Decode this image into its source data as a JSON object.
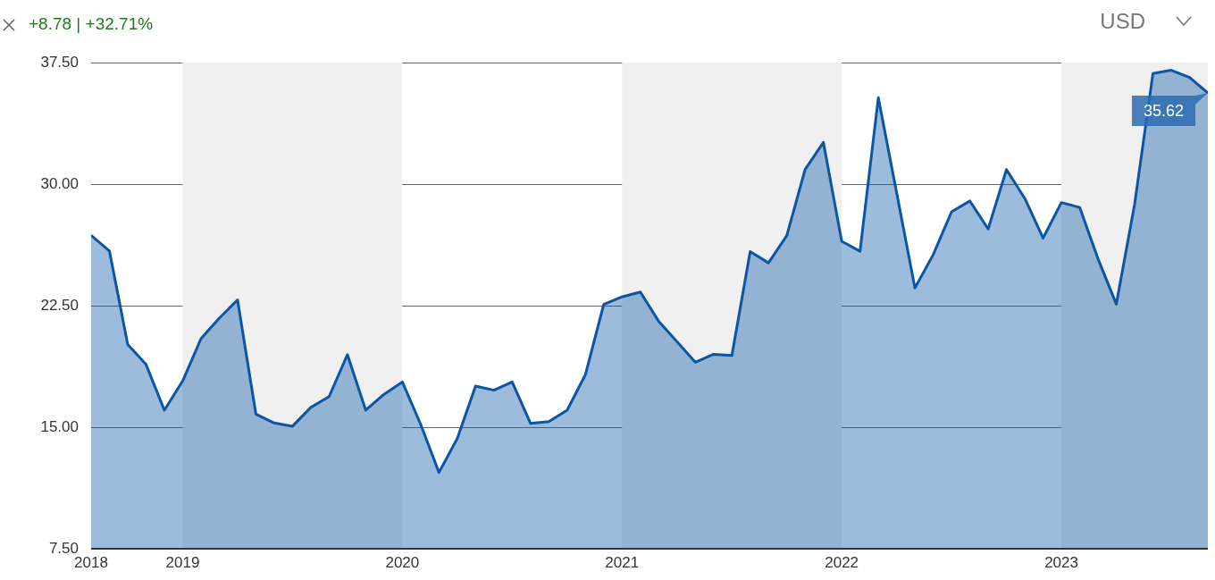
{
  "chart_data": {
    "type": "area",
    "title": "+8.78 | +32.71%",
    "annotations": [
      "USD",
      {
        "text": "35.62",
        "x": "2023-09",
        "y": 35.62
      }
    ],
    "x": [
      "2018-08",
      "2018-09",
      "2018-10",
      "2018-11",
      "2018-12",
      "2019-01",
      "2019-02",
      "2019-03",
      "2019-04",
      "2019-05",
      "2019-06",
      "2019-07",
      "2019-08",
      "2019-09",
      "2019-10",
      "2019-11",
      "2019-12",
      "2020-01",
      "2020-02",
      "2020-03",
      "2020-04",
      "2020-05",
      "2020-06",
      "2020-07",
      "2020-08",
      "2020-09",
      "2020-10",
      "2020-11",
      "2020-12",
      "2021-01",
      "2021-02",
      "2021-03",
      "2021-04",
      "2021-05",
      "2021-06",
      "2021-07",
      "2021-08",
      "2021-09",
      "2021-10",
      "2021-11",
      "2021-12",
      "2022-01",
      "2022-02",
      "2022-03",
      "2022-04",
      "2022-05",
      "2022-06",
      "2022-07",
      "2022-08",
      "2022-09",
      "2022-10",
      "2022-11",
      "2022-12",
      "2023-01",
      "2023-02",
      "2023-03",
      "2023-04",
      "2023-05",
      "2023-06",
      "2023-07",
      "2023-08",
      "2023-09"
    ],
    "series": [
      {
        "color": "#0b56a4",
        "values": [
          26.84,
          25.87,
          20.1,
          18.87,
          16.05,
          17.85,
          20.46,
          21.73,
          22.85,
          15.81,
          15.26,
          15.06,
          16.22,
          16.89,
          19.48,
          16.05,
          17.03,
          17.79,
          15.18,
          12.21,
          14.3,
          17.54,
          17.28,
          17.79,
          15.24,
          15.34,
          16.05,
          18.24,
          22.57,
          23.04,
          23.34,
          21.54,
          20.28,
          19.01,
          19.5,
          19.42,
          25.84,
          25.14,
          26.82,
          30.9,
          32.58,
          26.47,
          25.86,
          35.33,
          29.47,
          23.59,
          25.65,
          28.29,
          28.96,
          27.23,
          30.9,
          29.12,
          26.67,
          28.86,
          28.56,
          25.39,
          22.59,
          28.76,
          36.83,
          37.03,
          36.58,
          35.62
        ]
      }
    ],
    "xlim": [
      "2018-08",
      "2023-09"
    ],
    "xticks": [
      {
        "value": "2018-08",
        "label": "2018"
      },
      {
        "value": "2019-01",
        "label": "2019"
      },
      {
        "value": "2020-01",
        "label": "2020"
      },
      {
        "value": "2021-01",
        "label": "2021"
      },
      {
        "value": "2022-01",
        "label": "2022"
      },
      {
        "value": "2023-01",
        "label": "2023"
      }
    ],
    "ylim": [
      7.5,
      37.5
    ],
    "yticks": [
      {
        "value": 7.5,
        "label": "7.50"
      },
      {
        "value": 15,
        "label": "15.00"
      },
      {
        "value": 22.5,
        "label": "22.50"
      },
      {
        "value": 30,
        "label": "30.00"
      },
      {
        "value": 37.5,
        "label": "37.50"
      }
    ],
    "bands": [
      {
        "axis": "x",
        "from": "2019-01",
        "to": "2020-01",
        "color": "#f0f0f0"
      },
      {
        "axis": "x",
        "from": "2021-01",
        "to": "2022-01",
        "color": "#f0f0f0"
      },
      {
        "axis": "x",
        "from": "2023-01",
        "to": "2023-09",
        "color": "#f0f0f0"
      }
    ],
    "grid": "y",
    "legend": false,
    "marker": "none",
    "line_style": "solid"
  }
}
